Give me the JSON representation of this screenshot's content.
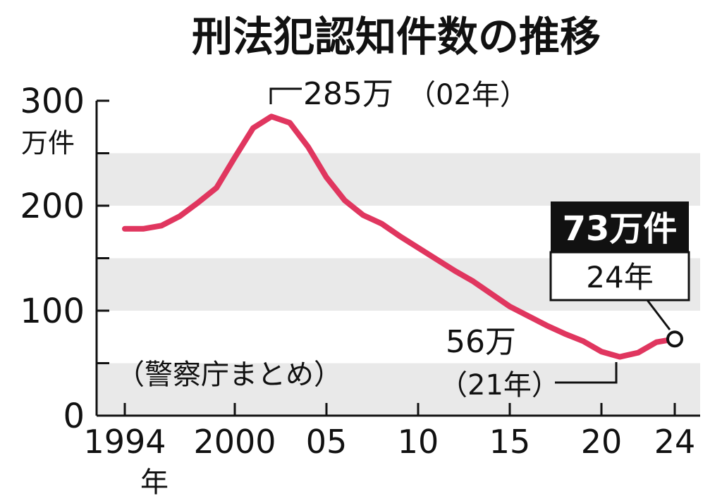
{
  "title": "刑法犯認知件数の推移",
  "source_note": "（警察庁まとめ）",
  "colors": {
    "line": "#e0365f",
    "band": "#e9e9e9",
    "axis": "#111111",
    "callout_bg": "#111111",
    "callout_text": "#ffffff"
  },
  "chart_data": {
    "type": "line",
    "title": "刑法犯認知件数の推移",
    "y_unit": "万件",
    "ylim": [
      0,
      300
    ],
    "y_ticks": [
      {
        "value": 0,
        "label": "0"
      },
      {
        "value": 100,
        "label": "100"
      },
      {
        "value": 200,
        "label": "200"
      },
      {
        "value": 300,
        "label": "300"
      }
    ],
    "x_ticks": [
      {
        "year": 1994,
        "label": "1994"
      },
      {
        "year": 2000,
        "label": "2000"
      },
      {
        "year": 2005,
        "label": "05"
      },
      {
        "year": 2010,
        "label": "10"
      },
      {
        "year": 2015,
        "label": "15"
      },
      {
        "year": 2020,
        "label": "20"
      },
      {
        "year": 2024,
        "label": "24"
      }
    ],
    "x_unit": "年",
    "xlim": [
      1994,
      2024
    ],
    "grid": "alternating horizontal bands every 50",
    "series": [
      {
        "x": [
          1994,
          1995,
          1996,
          1997,
          1998,
          1999,
          2000,
          2001,
          2002,
          2003,
          2004,
          2005,
          2006,
          2007,
          2008,
          2009,
          2010,
          2011,
          2012,
          2013,
          2014,
          2015,
          2016,
          2017,
          2018,
          2019,
          2020,
          2021,
          2022,
          2023,
          2024
        ],
        "values": [
          178,
          178,
          181,
          190,
          203,
          217,
          246,
          274,
          285,
          279,
          256,
          227,
          205,
          191,
          183,
          171,
          160,
          149,
          138,
          128,
          116,
          104,
          95,
          86,
          78,
          71,
          61,
          56,
          60,
          70,
          73
        ]
      }
    ],
    "annotations": {
      "peak": {
        "value_label": "285万",
        "year_label": "（02年）",
        "year": 2002,
        "value": 285
      },
      "low": {
        "value_label": "56万",
        "year_label": "（21年）",
        "year": 2021,
        "value": 56
      },
      "latest": {
        "value_label": "73万件",
        "year_label": "24年",
        "year": 2024,
        "value": 73
      }
    }
  }
}
